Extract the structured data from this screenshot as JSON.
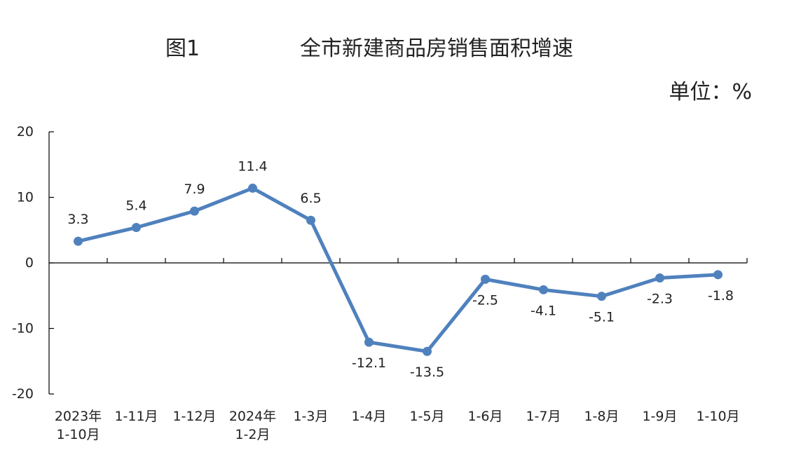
{
  "header": {
    "figure_label": "图1",
    "title": "全市新建商品房销售面积增速",
    "unit": "单位：%"
  },
  "chart_data": {
    "type": "line",
    "title": "全市新建商品房销售面积增速",
    "ylabel": "",
    "xlabel": "",
    "ylim": [
      -20,
      20
    ],
    "yticks": [
      20,
      10,
      0,
      -10,
      -20
    ],
    "categories": [
      [
        "2023年",
        "1-10月"
      ],
      [
        "1-11月"
      ],
      [
        "1-12月"
      ],
      [
        "2024年",
        "1-2月"
      ],
      [
        "1-3月"
      ],
      [
        "1-4月"
      ],
      [
        "1-5月"
      ],
      [
        "1-6月"
      ],
      [
        "1-7月"
      ],
      [
        "1-8月"
      ],
      [
        "1-9月"
      ],
      [
        "1-10月"
      ]
    ],
    "values": [
      3.3,
      5.4,
      7.9,
      11.4,
      6.5,
      -12.1,
      -13.5,
      -2.5,
      -4.1,
      -5.1,
      -2.3,
      -1.8
    ],
    "data_labels": [
      "3.3",
      "5.4",
      "7.9",
      "11.4",
      "6.5",
      "-12.1",
      "-13.5",
      "-2.5",
      "-4.1",
      "-5.1",
      "-2.3",
      "-1.8"
    ],
    "line_color": "#4f81bd",
    "grid": false,
    "legend": "none"
  }
}
